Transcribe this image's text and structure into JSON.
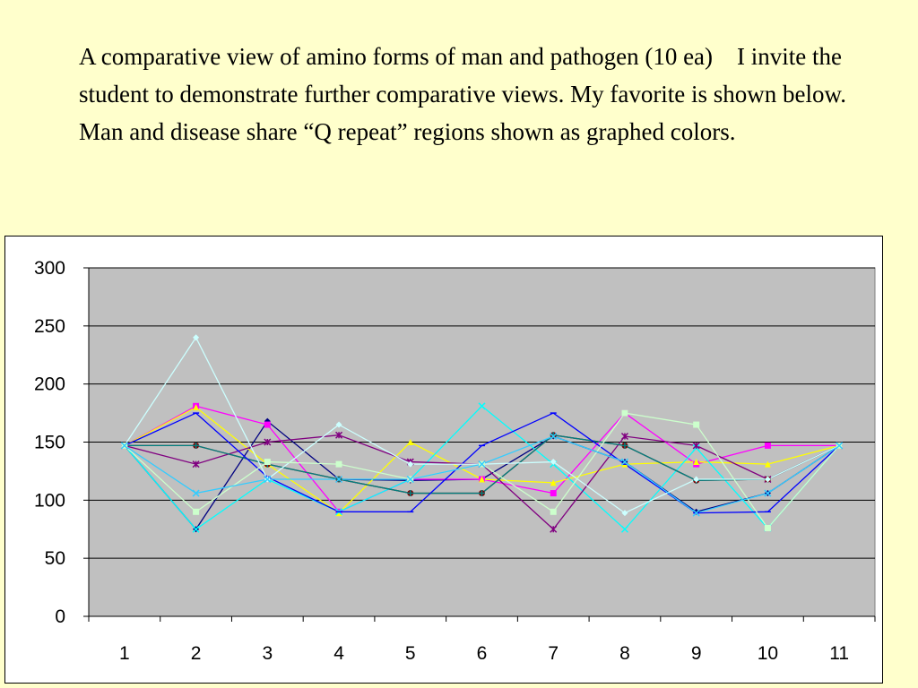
{
  "slide": {
    "caption": "A comparative view of amino forms of man and pathogen (10 ea)    I invite the student to demonstrate further comparative views. My favorite is shown below.  Man and disease share “Q repeat” regions shown as graphed colors.",
    "background": "#ffffcc"
  },
  "chart_data": {
    "type": "line",
    "title": "",
    "xlabel": "",
    "ylabel": "",
    "categories": [
      "1",
      "2",
      "3",
      "4",
      "5",
      "6",
      "7",
      "8",
      "9",
      "10",
      "11"
    ],
    "ylim": [
      0,
      300
    ],
    "yticks": [
      0,
      50,
      100,
      150,
      200,
      250,
      300
    ],
    "grid": true,
    "plot_background": "#c0c0c0",
    "legend": "none",
    "series": [
      {
        "color": "#000080",
        "marker": "diamond",
        "values": [
          147,
          75,
          168,
          118,
          117,
          118,
          155,
          133,
          90,
          106,
          147
        ]
      },
      {
        "color": "#ff00ff",
        "marker": "square",
        "values": [
          147,
          181,
          165,
          90,
          118,
          118,
          106,
          175,
          131,
          147,
          147
        ]
      },
      {
        "color": "#ffff00",
        "marker": "triangle",
        "values": [
          147,
          180,
          131,
          89,
          150,
          118,
          115,
          131,
          133,
          131,
          147
        ]
      },
      {
        "color": "#00ffff",
        "marker": "x",
        "values": [
          147,
          75,
          118,
          90,
          118,
          181,
          131,
          75,
          145,
          76,
          147
        ]
      },
      {
        "color": "#800080",
        "marker": "star",
        "values": [
          147,
          131,
          150,
          156,
          133,
          131,
          75,
          155,
          147,
          118,
          147
        ]
      },
      {
        "color": "#800000",
        "marker": "circle",
        "values": [
          147,
          147,
          131,
          118,
          106,
          106,
          156,
          147,
          117,
          118,
          147
        ]
      },
      {
        "color": "#008080",
        "marker": "plus",
        "values": [
          147,
          147,
          131,
          118,
          106,
          106,
          156,
          147,
          117,
          118,
          147
        ]
      },
      {
        "color": "#0000ff",
        "marker": "dash",
        "values": [
          147,
          175,
          120,
          90,
          90,
          147,
          175,
          131,
          89,
          90,
          147
        ]
      },
      {
        "color": "#ccffff",
        "marker": "diamond",
        "values": [
          147,
          240,
          118,
          165,
          131,
          131,
          133,
          89,
          118,
          118,
          147
        ]
      },
      {
        "color": "#ccffcc",
        "marker": "square",
        "values": [
          147,
          90,
          133,
          131,
          118,
          131,
          90,
          175,
          165,
          76,
          147
        ]
      },
      {
        "color": "#33ccff",
        "marker": "x",
        "values": [
          147,
          106,
          118,
          118,
          118,
          131,
          155,
          133,
          89,
          106,
          147
        ]
      }
    ]
  }
}
